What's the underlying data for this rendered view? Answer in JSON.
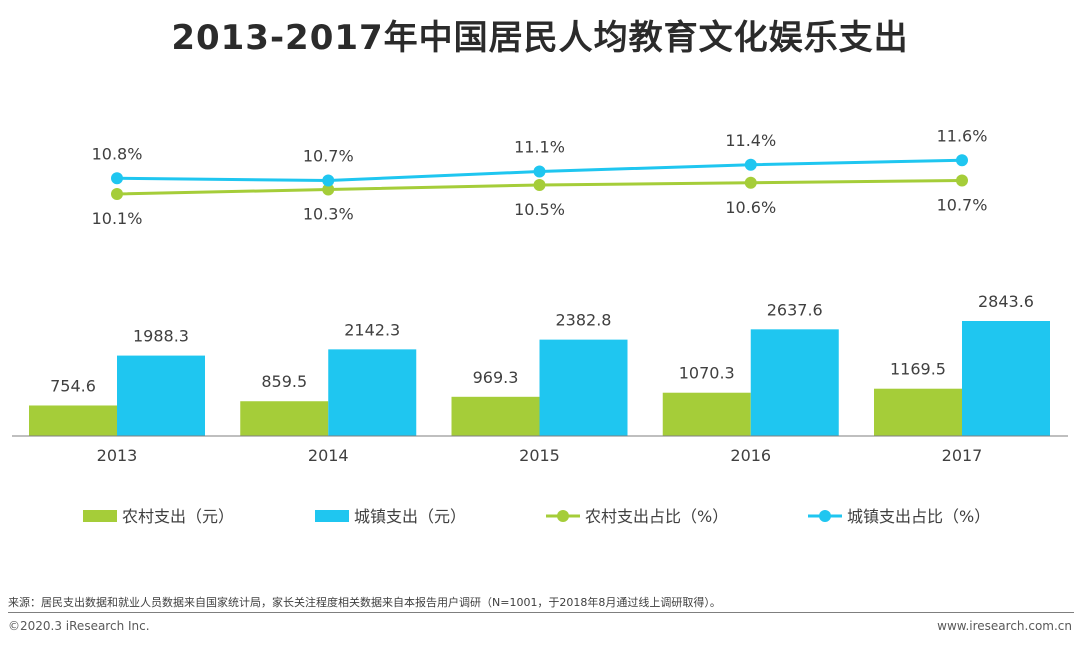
{
  "chart_data": {
    "type": "bar",
    "title": "2013-2017年中国居民人均教育文化娱乐支出",
    "categories": [
      "2013",
      "2014",
      "2015",
      "2016",
      "2017"
    ],
    "bar_series": [
      {
        "name": "农村支出（元）",
        "color": "#a5cd39",
        "values": [
          754.6,
          859.5,
          969.3,
          1070.3,
          1169.5
        ],
        "labels": [
          "754.6",
          "859.5",
          "969.3",
          "1070.3",
          "1169.5"
        ]
      },
      {
        "name": "城镇支出（元）",
        "color": "#1fc6f0",
        "values": [
          1988.3,
          2142.3,
          2382.8,
          2637.6,
          2843.6
        ],
        "labels": [
          "1988.3",
          "2142.3",
          "2382.8",
          "2637.6",
          "2843.6"
        ]
      }
    ],
    "line_series": [
      {
        "name": "农村支出占比（%）",
        "color": "#a5cd39",
        "values": [
          10.1,
          10.3,
          10.5,
          10.6,
          10.7
        ],
        "labels": [
          "10.1%",
          "10.3%",
          "10.5%",
          "10.6%",
          "10.7%"
        ]
      },
      {
        "name": "城镇支出占比（%）",
        "color": "#1fc6f0",
        "values": [
          10.8,
          10.7,
          11.1,
          11.4,
          11.6
        ],
        "labels": [
          "10.8%",
          "10.7%",
          "11.1%",
          "11.4%",
          "11.6%"
        ]
      }
    ],
    "legend": [
      "农村支出（元）",
      "城镇支出（元）",
      "农村支出占比（%）",
      "城镇支出占比（%）"
    ],
    "legend_position": "bottom"
  },
  "footer": {
    "source": "来源：居民支出数据和就业人员数据来自国家统计局，家长关注程度相关数据来自本报告用户调研（N=1001，于2018年8月通过线上调研取得）。",
    "copyright": "©2020.3 iResearch Inc.",
    "website": "www.iresearch.com.cn"
  }
}
